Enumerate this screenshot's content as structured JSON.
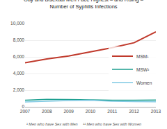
{
  "chart_data": {
    "type": "line",
    "title": [
      "Gay and Bisexual Men Face Highest – and Rising –",
      "Number of Syphilis Infections"
    ],
    "x": [
      2007,
      2008,
      2009,
      2010,
      2011,
      2012,
      2013
    ],
    "series": [
      {
        "name": "MSM¹",
        "color": "#c0392b",
        "values": [
          5300,
          5750,
          6100,
          6600,
          7100,
          7700,
          9000
        ]
      },
      {
        "name": "MSW²",
        "color": "#1a9e8e",
        "values": [
          800,
          900,
          870,
          820,
          790,
          800,
          820
        ]
      },
      {
        "name": "Women",
        "color": "#7ec8e3",
        "values": [
          580,
          680,
          740,
          790,
          670,
          620,
          600
        ]
      }
    ],
    "xlim": [
      2007,
      2013
    ],
    "xticks": [
      2007,
      2008,
      2009,
      2010,
      2011,
      2012,
      2013
    ],
    "ylim": [
      0,
      10000
    ],
    "yticks": [
      0,
      {
        "value": 2000,
        "label": "2,000"
      },
      {
        "value": 4000,
        "label": "4,000"
      },
      {
        "value": 6000,
        "label": "6,000"
      },
      {
        "value": 8000,
        "label": "8,000"
      },
      {
        "value": 10000,
        "label": "10,000"
      }
    ],
    "grid": true,
    "legend": "right",
    "annotations": [
      "¹ Men who have Sex with Men     ¹¹ Men who have Sex with Women"
    ]
  }
}
